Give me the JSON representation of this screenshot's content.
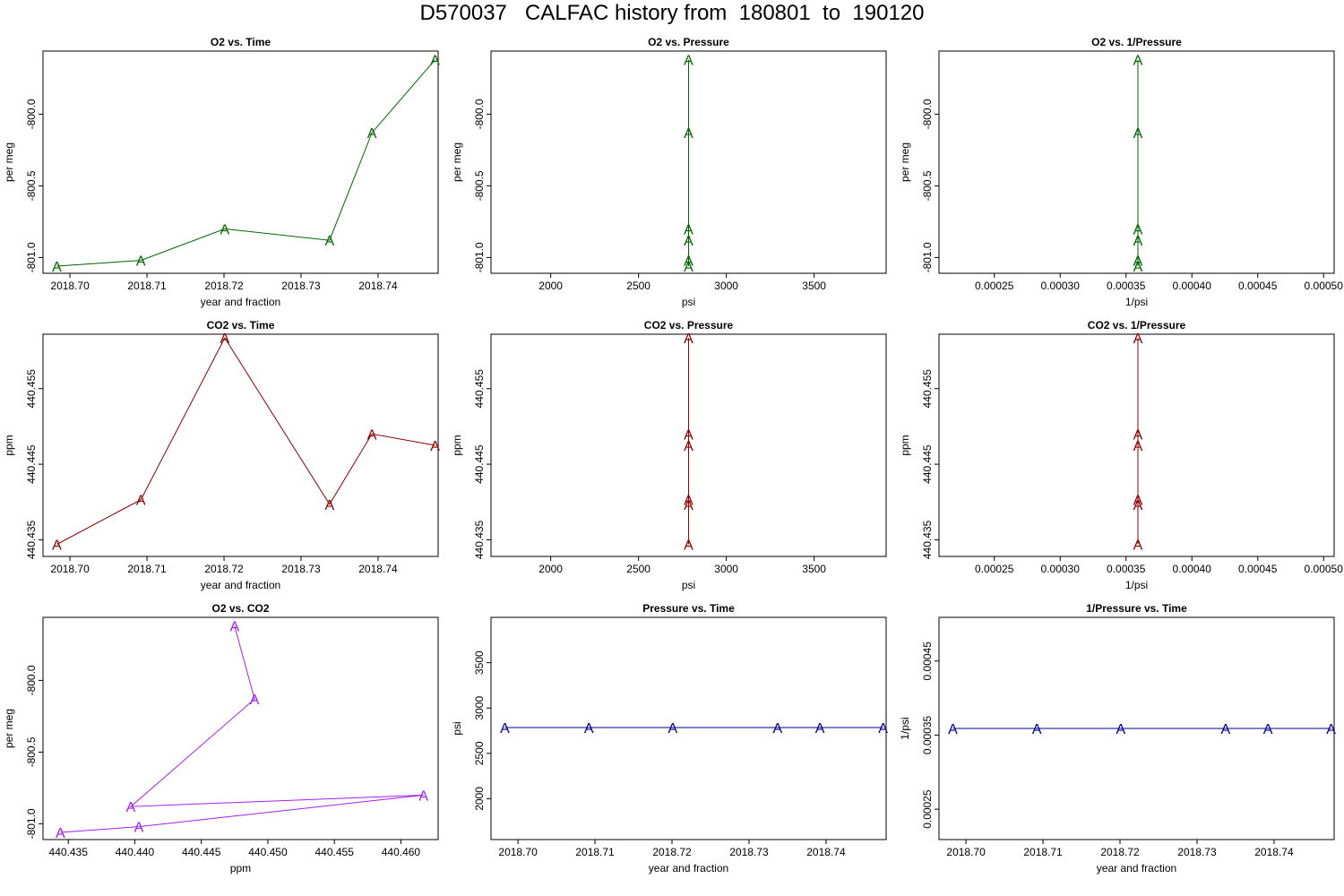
{
  "title": "D570037   CALFAC history from  180801  to  190120",
  "chart_data": [
    {
      "id": "o2-vs-time",
      "type": "line",
      "title": "O2 vs. Time",
      "xlabel": "year and fraction",
      "ylabel": "per meg",
      "color": "#006400",
      "xlim": [
        2018.6965,
        2018.7478
      ],
      "ylim": [
        -801.11,
        -799.56
      ],
      "xticks": [
        2018.7,
        2018.71,
        2018.72,
        2018.73,
        2018.74
      ],
      "xtick_labels": [
        "2018.70",
        "2018.71",
        "2018.72",
        "2018.73",
        "2018.74"
      ],
      "yticks": [
        -800.0,
        -800.5,
        -801.0
      ],
      "ytick_labels": [
        "-800.0",
        "-800.5",
        "-801.0"
      ],
      "marker": "A",
      "x": [
        2018.6983,
        2018.7092,
        2018.7201,
        2018.7337,
        2018.7392,
        2018.7474
      ],
      "y": [
        -801.06,
        -801.02,
        -800.8,
        -800.88,
        -800.13,
        -799.62
      ]
    },
    {
      "id": "o2-vs-pressure",
      "type": "scatter",
      "title": "O2 vs. Pressure",
      "xlabel": "psi",
      "ylabel": "per meg",
      "color": "#006400",
      "xlim": [
        1660,
        3910
      ],
      "ylim": [
        -801.11,
        -799.56
      ],
      "xticks": [
        2000,
        2500,
        3000,
        3500
      ],
      "xtick_labels": [
        "2000",
        "2500",
        "3000",
        "3500"
      ],
      "yticks": [
        -800.0,
        -800.5,
        -801.0
      ],
      "ytick_labels": [
        "-800.0",
        "-800.5",
        "-801.0"
      ],
      "marker": "A",
      "x": [
        2785,
        2785,
        2785,
        2785,
        2785,
        2785
      ],
      "y": [
        -801.06,
        -801.02,
        -800.8,
        -800.88,
        -800.13,
        -799.62
      ]
    },
    {
      "id": "o2-vs-inv-pressure",
      "type": "scatter",
      "title": "O2 vs. 1/Pressure",
      "xlabel": "1/psi",
      "ylabel": "per meg",
      "color": "#006400",
      "xlim": [
        0.000208,
        0.000508
      ],
      "ylim": [
        -801.11,
        -799.56
      ],
      "xticks": [
        0.00025,
        0.0003,
        0.00035,
        0.0004,
        0.00045,
        0.0005
      ],
      "xtick_labels": [
        "0.00025",
        "0.00030",
        "0.00035",
        "0.00040",
        "0.00045",
        "0.00050"
      ],
      "yticks": [
        -800.0,
        -800.5,
        -801.0
      ],
      "ytick_labels": [
        "-800.0",
        "-800.5",
        "-801.0"
      ],
      "marker": "A",
      "x": [
        0.000359,
        0.000359,
        0.000359,
        0.000359,
        0.000359,
        0.000359
      ],
      "y": [
        -801.06,
        -801.02,
        -800.8,
        -800.88,
        -800.13,
        -799.62
      ]
    },
    {
      "id": "co2-vs-time",
      "type": "line",
      "title": "CO2 vs. Time",
      "xlabel": "year and fraction",
      "ylabel": "ppm",
      "color": "#8b0000",
      "xlim": [
        2018.6965,
        2018.7478
      ],
      "ylim": [
        440.4328,
        440.4622
      ],
      "xticks": [
        2018.7,
        2018.71,
        2018.72,
        2018.73,
        2018.74
      ],
      "xtick_labels": [
        "2018.70",
        "2018.71",
        "2018.72",
        "2018.73",
        "2018.74"
      ],
      "yticks": [
        440.435,
        440.445,
        440.455
      ],
      "ytick_labels": [
        "440.435",
        "440.445",
        "440.455"
      ],
      "marker": "A",
      "x": [
        2018.6983,
        2018.7092,
        2018.7201,
        2018.7337,
        2018.7392,
        2018.7474
      ],
      "y": [
        440.4344,
        440.4403,
        440.4617,
        440.4397,
        440.449,
        440.4475
      ]
    },
    {
      "id": "co2-vs-pressure",
      "type": "scatter",
      "title": "CO2 vs. Pressure",
      "xlabel": "psi",
      "ylabel": "ppm",
      "color": "#8b0000",
      "xlim": [
        1660,
        3910
      ],
      "ylim": [
        440.4328,
        440.4622
      ],
      "xticks": [
        2000,
        2500,
        3000,
        3500
      ],
      "xtick_labels": [
        "2000",
        "2500",
        "3000",
        "3500"
      ],
      "yticks": [
        440.435,
        440.445,
        440.455
      ],
      "ytick_labels": [
        "440.435",
        "440.445",
        "440.455"
      ],
      "marker": "A",
      "x": [
        2785,
        2785,
        2785,
        2785,
        2785,
        2785
      ],
      "y": [
        440.4344,
        440.4403,
        440.4617,
        440.4397,
        440.449,
        440.4475
      ]
    },
    {
      "id": "co2-vs-inv-pressure",
      "type": "scatter",
      "title": "CO2 vs. 1/Pressure",
      "xlabel": "1/psi",
      "ylabel": "ppm",
      "color": "#8b0000",
      "xlim": [
        0.000208,
        0.000508
      ],
      "ylim": [
        440.4328,
        440.4622
      ],
      "xticks": [
        0.00025,
        0.0003,
        0.00035,
        0.0004,
        0.00045,
        0.0005
      ],
      "xtick_labels": [
        "0.00025",
        "0.00030",
        "0.00035",
        "0.00040",
        "0.00045",
        "0.00050"
      ],
      "yticks": [
        440.435,
        440.445,
        440.455
      ],
      "ytick_labels": [
        "440.435",
        "440.445",
        "440.455"
      ],
      "marker": "A",
      "x": [
        0.000359,
        0.000359,
        0.000359,
        0.000359,
        0.000359,
        0.000359
      ],
      "y": [
        440.4344,
        440.4403,
        440.4617,
        440.4397,
        440.449,
        440.4475
      ]
    },
    {
      "id": "o2-vs-co2",
      "type": "line",
      "title": "O2 vs. CO2",
      "xlabel": "ppm",
      "ylabel": "per meg",
      "color": "#a020f0",
      "xlim": [
        440.4331,
        440.4628
      ],
      "ylim": [
        -801.11,
        -799.56
      ],
      "xticks": [
        440.435,
        440.44,
        440.445,
        440.45,
        440.455,
        440.46
      ],
      "xtick_labels": [
        "440.435",
        "440.440",
        "440.445",
        "440.450",
        "440.455",
        "440.460"
      ],
      "yticks": [
        -800.0,
        -800.5,
        -801.0
      ],
      "ytick_labels": [
        "-800.0",
        "-800.5",
        "-801.0"
      ],
      "marker": "A",
      "x": [
        440.4344,
        440.4403,
        440.4617,
        440.4397,
        440.449,
        440.4475
      ],
      "y": [
        -801.06,
        -801.02,
        -800.8,
        -800.88,
        -800.13,
        -799.62
      ]
    },
    {
      "id": "pressure-vs-time",
      "type": "line",
      "title": "Pressure vs. Time",
      "xlabel": "year and fraction",
      "ylabel": "psi",
      "color": "#00008b",
      "xlim": [
        2018.6965,
        2018.7478
      ],
      "ylim": [
        1550,
        4000
      ],
      "xticks": [
        2018.7,
        2018.71,
        2018.72,
        2018.73,
        2018.74
      ],
      "xtick_labels": [
        "2018.70",
        "2018.71",
        "2018.72",
        "2018.73",
        "2018.74"
      ],
      "yticks": [
        2000,
        2500,
        3000,
        3500
      ],
      "ytick_labels": [
        "2000",
        "2500",
        "3000",
        "3500"
      ],
      "marker": "A",
      "x": [
        2018.6983,
        2018.7092,
        2018.7201,
        2018.7337,
        2018.7392,
        2018.7474
      ],
      "y": [
        2785,
        2785,
        2785,
        2785,
        2785,
        2785
      ]
    },
    {
      "id": "inv-pressure-vs-time",
      "type": "line",
      "title": "1/Pressure vs. Time",
      "xlabel": "year and fraction",
      "ylabel": "1/psi",
      "color": "#00008b",
      "xlim": [
        2018.6965,
        2018.7478
      ],
      "ylim": [
        0.000209,
        0.000509
      ],
      "xticks": [
        2018.7,
        2018.71,
        2018.72,
        2018.73,
        2018.74
      ],
      "xtick_labels": [
        "2018.70",
        "2018.71",
        "2018.72",
        "2018.73",
        "2018.74"
      ],
      "yticks": [
        0.00025,
        0.00035,
        0.00045
      ],
      "ytick_labels": [
        "0.00025",
        "0.00035",
        "0.00045"
      ],
      "marker": "A",
      "x": [
        2018.6983,
        2018.7092,
        2018.7201,
        2018.7337,
        2018.7392,
        2018.7474
      ],
      "y": [
        0.000359,
        0.000359,
        0.000359,
        0.000359,
        0.000359,
        0.000359
      ]
    }
  ]
}
